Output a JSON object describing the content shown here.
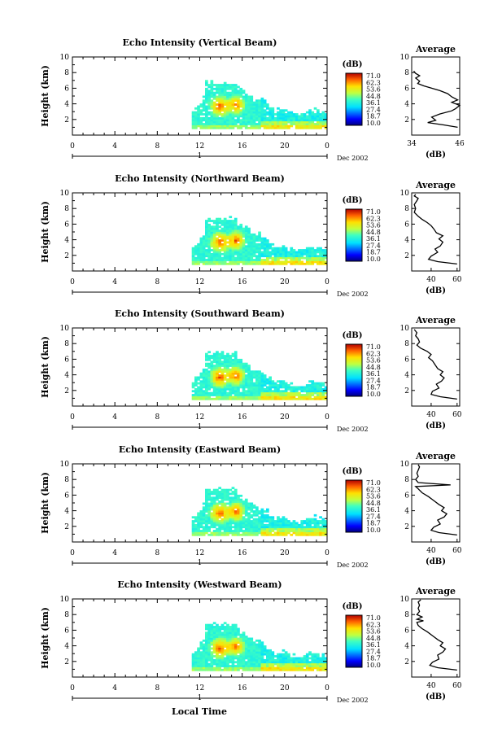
{
  "chart_data": [
    {
      "type": "heatmap",
      "title": "Echo Intensity (Vertical Beam)",
      "ylabel": "Height (km)",
      "xlabel": "",
      "x_ticks": [
        "0",
        "4",
        "8",
        "12",
        "16",
        "20",
        "0"
      ],
      "y_ticks": [
        "2",
        "4",
        "6",
        "8",
        "10"
      ],
      "xlim": [
        0,
        24
      ],
      "ylim": [
        0,
        10
      ],
      "date_index": "1",
      "date_label": "Dec 2002",
      "colorbar": {
        "unit": "(dB)",
        "labels": [
          "71.0",
          "62.3",
          "53.6",
          "44.8",
          "36.1",
          "27.4",
          "18.7",
          "10.0"
        ],
        "range": [
          10.0,
          71.0
        ]
      },
      "average": {
        "title": "Average",
        "xlabel": "(dB)",
        "x_ticks": [
          "34",
          "46"
        ],
        "xlim": [
          34,
          46
        ],
        "y_ticks": [
          "2",
          "4",
          "6",
          "8",
          "10"
        ],
        "profile": [
          [
            45.5,
            1.0
          ],
          [
            42,
            1.3
          ],
          [
            38,
            1.6
          ],
          [
            40,
            1.9
          ],
          [
            39,
            2.3
          ],
          [
            41,
            2.7
          ],
          [
            44,
            3.1
          ],
          [
            45,
            3.4
          ],
          [
            46,
            3.8
          ],
          [
            44,
            4.2
          ],
          [
            45.5,
            4.5
          ],
          [
            44,
            4.9
          ],
          [
            43,
            5.3
          ],
          [
            41,
            5.7
          ],
          [
            39,
            6.0
          ],
          [
            37,
            6.3
          ],
          [
            35.5,
            6.6
          ],
          [
            36,
            6.9
          ],
          [
            35,
            7.3
          ],
          [
            36,
            7.6
          ],
          [
            35,
            7.9
          ],
          [
            34.5,
            8.2
          ]
        ]
      }
    },
    {
      "type": "heatmap",
      "title": "Echo Intensity (Northward Beam)",
      "ylabel": "Height (km)",
      "xlabel": "",
      "x_ticks": [
        "0",
        "4",
        "8",
        "12",
        "16",
        "20",
        "0"
      ],
      "y_ticks": [
        "2",
        "4",
        "6",
        "8",
        "10"
      ],
      "xlim": [
        0,
        24
      ],
      "ylim": [
        0,
        10
      ],
      "date_index": "1",
      "date_label": "Dec 2002",
      "colorbar": {
        "unit": "(dB)",
        "labels": [
          "71.0",
          "62.3",
          "53.6",
          "44.8",
          "36.1",
          "27.4",
          "18.7",
          "10.0"
        ],
        "range": [
          10.0,
          71.0
        ]
      },
      "average": {
        "title": "Average",
        "xlabel": "(dB)",
        "x_ticks": [
          "40",
          "60"
        ],
        "xlim": [
          25,
          62
        ],
        "y_ticks": [
          "2",
          "4",
          "6",
          "8",
          "10"
        ],
        "profile": [
          [
            60,
            0.9
          ],
          [
            45,
            1.2
          ],
          [
            38,
            1.5
          ],
          [
            40,
            1.9
          ],
          [
            45,
            2.4
          ],
          [
            43,
            2.8
          ],
          [
            47,
            3.2
          ],
          [
            49,
            3.7
          ],
          [
            46,
            4.1
          ],
          [
            49,
            4.5
          ],
          [
            44,
            4.9
          ],
          [
            42,
            5.4
          ],
          [
            40,
            5.8
          ],
          [
            37,
            6.2
          ],
          [
            33,
            6.6
          ],
          [
            30,
            7.0
          ],
          [
            27,
            7.5
          ],
          [
            28,
            8.0
          ],
          [
            27,
            8.5
          ],
          [
            29,
            9.0
          ],
          [
            30,
            9.3
          ],
          [
            27,
            9.6
          ],
          [
            28,
            9.8
          ]
        ]
      }
    },
    {
      "type": "heatmap",
      "title": "Echo Intensity (Southward Beam)",
      "ylabel": "Height (km)",
      "xlabel": "",
      "x_ticks": [
        "0",
        "4",
        "8",
        "12",
        "16",
        "20",
        "0"
      ],
      "y_ticks": [
        "2",
        "4",
        "6",
        "8",
        "10"
      ],
      "xlim": [
        0,
        24
      ],
      "ylim": [
        0,
        10
      ],
      "date_index": "1",
      "date_label": "Dec 2002",
      "colorbar": {
        "unit": "(dB)",
        "labels": [
          "71.0",
          "62.3",
          "53.6",
          "44.8",
          "36.1",
          "27.4",
          "18.7",
          "10.0"
        ],
        "range": [
          10.0,
          71.0
        ]
      },
      "average": {
        "title": "Average",
        "xlabel": "(dB)",
        "x_ticks": [
          "40",
          "60"
        ],
        "xlim": [
          25,
          62
        ],
        "y_ticks": [
          "2",
          "4",
          "6",
          "8",
          "10"
        ],
        "profile": [
          [
            60,
            0.9
          ],
          [
            47,
            1.2
          ],
          [
            40,
            1.5
          ],
          [
            41,
            1.9
          ],
          [
            46,
            2.3
          ],
          [
            44,
            2.8
          ],
          [
            48,
            3.2
          ],
          [
            50,
            3.6
          ],
          [
            47,
            4.0
          ],
          [
            49,
            4.4
          ],
          [
            45,
            4.8
          ],
          [
            43,
            5.3
          ],
          [
            41,
            5.8
          ],
          [
            38,
            6.2
          ],
          [
            40,
            6.6
          ],
          [
            37,
            7.0
          ],
          [
            32,
            7.4
          ],
          [
            29,
            7.8
          ],
          [
            31,
            8.2
          ],
          [
            30,
            8.6
          ],
          [
            28,
            9.0
          ],
          [
            29,
            9.4
          ],
          [
            27,
            9.8
          ]
        ]
      }
    },
    {
      "type": "heatmap",
      "title": "Echo Intensity (Eastward Beam)",
      "ylabel": "Height (km)",
      "xlabel": "",
      "x_ticks": [
        "0",
        "4",
        "8",
        "12",
        "16",
        "20",
        "0"
      ],
      "y_ticks": [
        "2",
        "4",
        "6",
        "8",
        "10"
      ],
      "xlim": [
        0,
        24
      ],
      "ylim": [
        0,
        10
      ],
      "date_index": "1",
      "date_label": "Dec 2002",
      "colorbar": {
        "unit": "(dB)",
        "labels": [
          "71.0",
          "62.3",
          "53.6",
          "44.8",
          "36.1",
          "27.4",
          "18.7",
          "10.0"
        ],
        "range": [
          10.0,
          71.0
        ]
      },
      "average": {
        "title": "Average",
        "xlabel": "(dB)",
        "x_ticks": [
          "40",
          "60"
        ],
        "xlim": [
          25,
          62
        ],
        "y_ticks": [
          "2",
          "4",
          "6",
          "8",
          "10"
        ],
        "profile": [
          [
            60,
            0.9
          ],
          [
            46,
            1.2
          ],
          [
            40,
            1.5
          ],
          [
            42,
            1.9
          ],
          [
            47,
            2.3
          ],
          [
            45,
            2.8
          ],
          [
            50,
            3.2
          ],
          [
            52,
            3.6
          ],
          [
            48,
            4.0
          ],
          [
            50,
            4.4
          ],
          [
            46,
            4.8
          ],
          [
            42,
            5.3
          ],
          [
            38,
            5.8
          ],
          [
            33,
            6.3
          ],
          [
            30,
            6.8
          ],
          [
            28,
            7.1
          ],
          [
            55,
            7.3
          ],
          [
            30,
            7.6
          ],
          [
            28,
            8.0
          ],
          [
            30,
            8.4
          ],
          [
            29,
            8.8
          ],
          [
            30,
            9.2
          ],
          [
            31,
            9.6
          ],
          [
            30,
            9.9
          ]
        ]
      }
    },
    {
      "type": "heatmap",
      "title": "Echo Intensity (Westward Beam)",
      "ylabel": "Height (km)",
      "xlabel": "Local Time",
      "x_ticks": [
        "0",
        "4",
        "8",
        "12",
        "16",
        "20",
        "0"
      ],
      "y_ticks": [
        "2",
        "4",
        "6",
        "8",
        "10"
      ],
      "xlim": [
        0,
        24
      ],
      "ylim": [
        0,
        10
      ],
      "date_index": "1",
      "date_label": "Dec 2002",
      "colorbar": {
        "unit": "(dB)",
        "labels": [
          "71.0",
          "62.3",
          "53.6",
          "44.8",
          "36.1",
          "27.4",
          "18.7",
          "10.0"
        ],
        "range": [
          10.0,
          71.0
        ]
      },
      "average": {
        "title": "Average",
        "xlabel": "(dB)",
        "x_ticks": [
          "40",
          "60"
        ],
        "xlim": [
          25,
          62
        ],
        "y_ticks": [
          "2",
          "4",
          "6",
          "8",
          "10"
        ],
        "profile": [
          [
            60,
            0.9
          ],
          [
            45,
            1.2
          ],
          [
            39,
            1.5
          ],
          [
            41,
            1.9
          ],
          [
            46,
            2.3
          ],
          [
            45,
            2.8
          ],
          [
            49,
            3.2
          ],
          [
            51,
            3.6
          ],
          [
            47,
            4.0
          ],
          [
            49,
            4.4
          ],
          [
            45,
            4.8
          ],
          [
            41,
            5.3
          ],
          [
            37,
            5.8
          ],
          [
            33,
            6.2
          ],
          [
            30,
            6.6
          ],
          [
            29,
            7.0
          ],
          [
            34,
            7.2
          ],
          [
            29,
            7.4
          ],
          [
            33,
            7.7
          ],
          [
            29,
            8.0
          ],
          [
            31,
            8.4
          ],
          [
            30,
            8.8
          ],
          [
            31,
            9.2
          ],
          [
            30,
            9.6
          ],
          [
            32,
            9.9
          ]
        ]
      }
    }
  ]
}
